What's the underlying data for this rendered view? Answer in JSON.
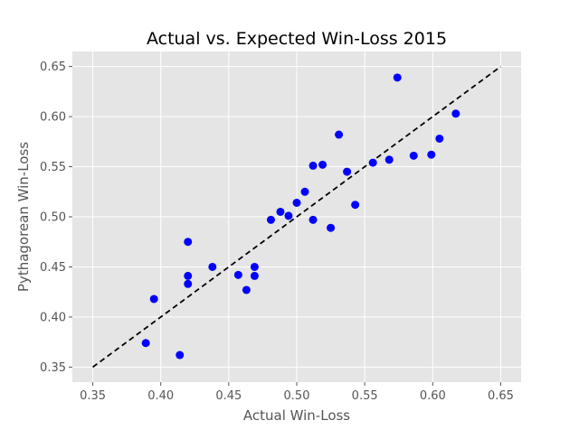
{
  "chart_data": {
    "type": "scatter",
    "title": "Actual vs. Expected Win-Loss 2015",
    "xlabel": "Actual Win-Loss",
    "ylabel": "Pythagorean Win-Loss",
    "xlim": [
      0.335,
      0.665
    ],
    "ylim": [
      0.335,
      0.665
    ],
    "xticks": [
      0.35,
      0.4,
      0.45,
      0.5,
      0.55,
      0.6,
      0.65
    ],
    "yticks": [
      0.35,
      0.4,
      0.45,
      0.5,
      0.55,
      0.6,
      0.65
    ],
    "xtick_labels": [
      "0.35",
      "0.40",
      "0.45",
      "0.50",
      "0.55",
      "0.60",
      "0.65"
    ],
    "ytick_labels": [
      "0.35",
      "0.40",
      "0.45",
      "0.50",
      "0.55",
      "0.60",
      "0.65"
    ],
    "grid": true,
    "style": "ggplot",
    "points": [
      {
        "x": 0.389,
        "y": 0.374
      },
      {
        "x": 0.395,
        "y": 0.418
      },
      {
        "x": 0.414,
        "y": 0.362
      },
      {
        "x": 0.42,
        "y": 0.475
      },
      {
        "x": 0.42,
        "y": 0.441
      },
      {
        "x": 0.42,
        "y": 0.433
      },
      {
        "x": 0.438,
        "y": 0.45
      },
      {
        "x": 0.457,
        "y": 0.442
      },
      {
        "x": 0.463,
        "y": 0.427
      },
      {
        "x": 0.469,
        "y": 0.45
      },
      {
        "x": 0.469,
        "y": 0.441
      },
      {
        "x": 0.481,
        "y": 0.497
      },
      {
        "x": 0.488,
        "y": 0.505
      },
      {
        "x": 0.494,
        "y": 0.501
      },
      {
        "x": 0.5,
        "y": 0.514
      },
      {
        "x": 0.506,
        "y": 0.525
      },
      {
        "x": 0.512,
        "y": 0.551
      },
      {
        "x": 0.512,
        "y": 0.497
      },
      {
        "x": 0.519,
        "y": 0.552
      },
      {
        "x": 0.525,
        "y": 0.489
      },
      {
        "x": 0.531,
        "y": 0.582
      },
      {
        "x": 0.537,
        "y": 0.545
      },
      {
        "x": 0.543,
        "y": 0.512
      },
      {
        "x": 0.556,
        "y": 0.554
      },
      {
        "x": 0.568,
        "y": 0.557
      },
      {
        "x": 0.574,
        "y": 0.639
      },
      {
        "x": 0.586,
        "y": 0.561
      },
      {
        "x": 0.599,
        "y": 0.562
      },
      {
        "x": 0.605,
        "y": 0.578
      },
      {
        "x": 0.617,
        "y": 0.603
      }
    ],
    "reference_line": {
      "x": [
        0.35,
        0.65
      ],
      "y": [
        0.35,
        0.65
      ],
      "style": "dashed",
      "color": "#000000"
    },
    "colors": {
      "point": "#0000ff",
      "plot_background": "#e5e5e5",
      "grid": "#ffffff",
      "text": "#555555"
    }
  }
}
